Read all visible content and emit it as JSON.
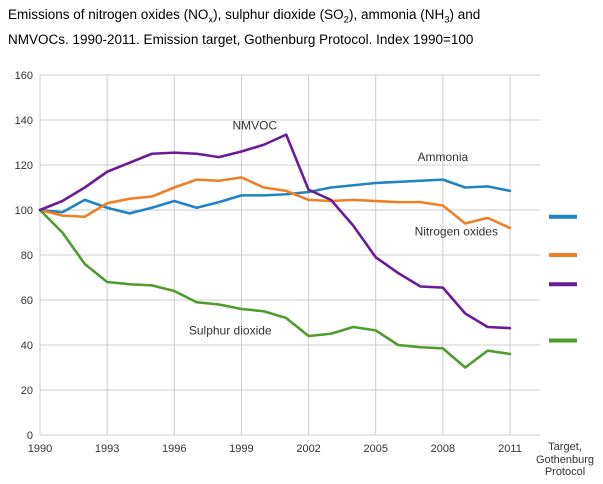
{
  "title": {
    "lines": [
      [
        {
          "t": "Emissions of nitrogen oxides (NO"
        },
        {
          "t": "x",
          "sub": true
        },
        {
          "t": "), sulphur dioxide (SO"
        },
        {
          "t": "2",
          "sub": true
        },
        {
          "t": "), ammonia (NH"
        },
        {
          "t": "3",
          "sub": true
        },
        {
          "t": ") and"
        }
      ],
      [
        {
          "t": "NMVOCs. 1990-2011. Emission target, Gothenburg Protocol. Index 1990=100"
        }
      ]
    ]
  },
  "target_legend": {
    "lines": [
      "Target,",
      "Gothenburg",
      "Protocol"
    ]
  },
  "chart_data": {
    "type": "line",
    "title": "Emissions of nitrogen oxides (NOx), sulphur dioxide (SO2), ammonia (NH3) and NMVOCs. 1990-2011. Emission target, Gothenburg Protocol. Index 1990=100",
    "index_note": "Index 1990=100",
    "xlabel": "",
    "ylabel": "",
    "grid": true,
    "ylim": [
      0,
      160
    ],
    "yticks": [
      0,
      20,
      40,
      60,
      80,
      100,
      120,
      140,
      160
    ],
    "xticks": [
      1990,
      1993,
      1996,
      1999,
      2002,
      2005,
      2008,
      2011
    ],
    "x": [
      1990,
      1991,
      1992,
      1993,
      1994,
      1995,
      1996,
      1997,
      1998,
      1999,
      2000,
      2001,
      2002,
      2003,
      2004,
      2005,
      2006,
      2007,
      2008,
      2009,
      2010,
      2011
    ],
    "series": [
      {
        "name": "Ammonia",
        "color": "#1f83c4",
        "target": 97,
        "values": [
          100,
          99,
          104.5,
          101,
          98.5,
          101,
          104,
          101,
          103.5,
          106.5,
          106.5,
          107,
          108,
          110,
          111,
          112,
          112.5,
          113,
          113.5,
          110,
          110.5,
          108.5
        ]
      },
      {
        "name": "Nitrogen oxides",
        "color": "#ef7f22",
        "target": 80,
        "values": [
          100,
          97.5,
          97,
          103,
          105,
          106,
          110,
          113.5,
          113,
          114.5,
          110,
          108.5,
          104.5,
          104,
          104.5,
          104,
          103.5,
          103.5,
          102,
          94,
          96.5,
          92
        ]
      },
      {
        "name": "Sulphur dioxide",
        "color": "#4e9d2c",
        "target": 42,
        "values": [
          100,
          90,
          76,
          68,
          67,
          66.5,
          64,
          59,
          58,
          56,
          55,
          52,
          44,
          45,
          48,
          46.5,
          40,
          39,
          38.5,
          30,
          37.5,
          36
        ]
      },
      {
        "name": "NMVOC",
        "color": "#6a1b9a",
        "target": 67,
        "values": [
          100,
          104,
          110,
          117,
          121,
          125,
          125.5,
          125,
          123.5,
          126,
          129,
          133.5,
          109,
          104.5,
          93,
          79,
          72,
          66,
          65.5,
          54,
          48,
          47.5
        ]
      }
    ],
    "annotations": [
      {
        "text": "NMVOC",
        "x": 1999.6,
        "y": 137.5
      },
      {
        "text": "Ammonia",
        "x": 2008,
        "y": 123.5
      },
      {
        "text": "Nitrogen oxides",
        "x": 2008.6,
        "y": 90.5
      },
      {
        "text": "Sulphur dioxide",
        "x": 1998.5,
        "y": 46.5
      }
    ],
    "target_label": "Target, Gothenburg Protocol"
  }
}
